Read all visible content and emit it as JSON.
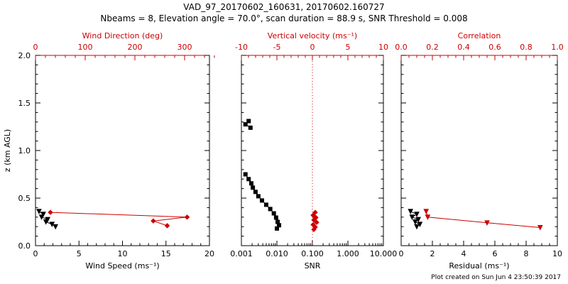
{
  "header": {
    "title": "VAD_97_20170602_160631, 20170602.160727",
    "subtitle": "Nbeams = 8, Elevation angle = 70.0°, scan duration = 88.9 s, SNR Threshold = 0.008"
  },
  "footer": {
    "created": "Plot created on Sun Jun 4 23:50:39 2017"
  },
  "colors": {
    "primary": "#000000",
    "secondary": "#cc0000",
    "background": "#ffffff"
  },
  "chart_data": [
    {
      "type": "line",
      "name": "wind-speed-direction-profile",
      "y_axis": {
        "label": "z (km AGL)",
        "lim": [
          0,
          2
        ],
        "ticks": [
          0,
          0.5,
          1,
          1.5,
          2
        ],
        "tick_labels": [
          "0.0",
          "0.5",
          "1.0",
          "1.5",
          "2.0"
        ],
        "minor_step": 0.1,
        "show_labels": true
      },
      "bottom_axis": {
        "label": "Wind Speed (ms⁻¹)",
        "lim": [
          0,
          20
        ],
        "ticks": [
          0,
          5,
          10,
          15,
          20
        ],
        "tick_labels": [
          "0",
          "5",
          "10",
          "15",
          "20"
        ],
        "minor_step": 1
      },
      "top_axis": {
        "label": "Wind Direction (deg)",
        "lim": [
          0,
          350
        ],
        "ticks": [
          0,
          100,
          200,
          300
        ],
        "tick_labels": [
          "0",
          "100",
          "200",
          "300"
        ],
        "minor_step": 20
      },
      "series": [
        {
          "name": "wind-speed",
          "axis": "bottom",
          "color": "#000000",
          "marker": "triangle",
          "segments": [
            [
              [
                0.4,
                0.36
              ],
              [
                0.9,
                0.33
              ],
              [
                0.7,
                0.3
              ],
              [
                1.4,
                0.275
              ],
              [
                1.2,
                0.25
              ],
              [
                1.9,
                0.225
              ],
              [
                2.3,
                0.2
              ]
            ]
          ]
        },
        {
          "name": "wind-direction",
          "axis": "top",
          "color": "#cc0000",
          "marker": "diamond",
          "segments": [
            [
              [
                30,
                0.35
              ],
              [
                305,
                0.3
              ],
              [
                237,
                0.26
              ],
              [
                265,
                0.21
              ]
            ]
          ]
        }
      ]
    },
    {
      "type": "line",
      "name": "snr-vertical-velocity-profile",
      "y_axis": {
        "label": "",
        "lim": [
          0,
          2
        ],
        "ticks": [
          0,
          0.5,
          1,
          1.5,
          2
        ],
        "tick_labels": [
          "0.0",
          "0.5",
          "1.0",
          "1.5",
          "2.0"
        ],
        "minor_step": 0.1,
        "show_labels": false
      },
      "bottom_axis": {
        "label": "SNR",
        "scale": "log",
        "lim": [
          0.001,
          10
        ],
        "ticks": [
          0.001,
          0.01,
          0.1,
          1,
          10
        ],
        "tick_labels": [
          "0.001",
          "0.010",
          "0.100",
          "1.000",
          "10.000"
        ]
      },
      "top_axis": {
        "label": "Vertical velocity (ms⁻¹)",
        "lim": [
          -10,
          10
        ],
        "ticks": [
          -10,
          -5,
          0,
          5,
          10
        ],
        "tick_labels": [
          "-10",
          "-5",
          "0",
          "5",
          "10"
        ],
        "minor_step": 1
      },
      "refline": {
        "axis": "top",
        "value": 0,
        "color": "#cc0000",
        "style": "dotted"
      },
      "series": [
        {
          "name": "snr",
          "axis": "bottom",
          "color": "#000000",
          "marker": "square",
          "segments": [
            [
              [
                0.0016,
                1.31
              ],
              [
                0.0013,
                1.275
              ],
              [
                0.0018,
                1.24
              ]
            ],
            [
              [
                0.0013,
                0.75
              ],
              [
                0.0016,
                0.7
              ],
              [
                0.0019,
                0.655
              ],
              [
                0.0021,
                0.61
              ],
              [
                0.0025,
                0.565
              ],
              [
                0.003,
                0.52
              ],
              [
                0.0038,
                0.475
              ],
              [
                0.005,
                0.43
              ],
              [
                0.0065,
                0.385
              ],
              [
                0.0082,
                0.34
              ],
              [
                0.0095,
                0.295
              ],
              [
                0.0105,
                0.25
              ],
              [
                0.0115,
                0.215
              ],
              [
                0.01,
                0.18
              ]
            ]
          ]
        },
        {
          "name": "vertical-velocity",
          "axis": "top",
          "color": "#cc0000",
          "marker": "diamond",
          "segments": [
            [
              [
                0.4,
                0.35
              ],
              [
                0.1,
                0.32
              ],
              [
                0.5,
                0.295
              ],
              [
                0.2,
                0.27
              ],
              [
                0.6,
                0.245
              ],
              [
                0.1,
                0.22
              ],
              [
                0.4,
                0.195
              ],
              [
                0.2,
                0.17
              ]
            ]
          ]
        }
      ]
    },
    {
      "type": "line",
      "name": "residual-correlation-profile",
      "y_axis": {
        "label": "",
        "lim": [
          0,
          2
        ],
        "ticks": [
          0,
          0.5,
          1,
          1.5,
          2
        ],
        "tick_labels": [
          "0.0",
          "0.5",
          "1.0",
          "1.5",
          "2.0"
        ],
        "minor_step": 0.1,
        "show_labels": false
      },
      "bottom_axis": {
        "label": "Residual (ms⁻¹)",
        "lim": [
          0,
          10
        ],
        "ticks": [
          0,
          2,
          4,
          6,
          8,
          10
        ],
        "tick_labels": [
          "0",
          "2",
          "4",
          "6",
          "8",
          "10"
        ],
        "minor_step": 0.5
      },
      "top_axis": {
        "label": "Correlation",
        "lim": [
          0,
          1
        ],
        "ticks": [
          0,
          0.2,
          0.4,
          0.6,
          0.8,
          1
        ],
        "tick_labels": [
          "0.0",
          "0.2",
          "0.4",
          "0.6",
          "0.8",
          "1.0"
        ],
        "minor_step": 0.05
      },
      "series": [
        {
          "name": "residual",
          "axis": "bottom",
          "color": "#000000",
          "marker": "triangle",
          "segments": [
            [
              [
                0.6,
                0.36
              ],
              [
                1.0,
                0.33
              ],
              [
                0.7,
                0.3
              ],
              [
                1.1,
                0.275
              ],
              [
                0.9,
                0.25
              ],
              [
                1.2,
                0.225
              ],
              [
                1.0,
                0.2
              ]
            ]
          ]
        },
        {
          "name": "correlation",
          "axis": "top",
          "color": "#cc0000",
          "marker": "triangle",
          "segments": [
            [
              [
                0.16,
                0.36
              ],
              [
                0.17,
                0.3
              ],
              [
                0.55,
                0.24
              ],
              [
                0.89,
                0.19
              ]
            ]
          ]
        }
      ]
    }
  ]
}
